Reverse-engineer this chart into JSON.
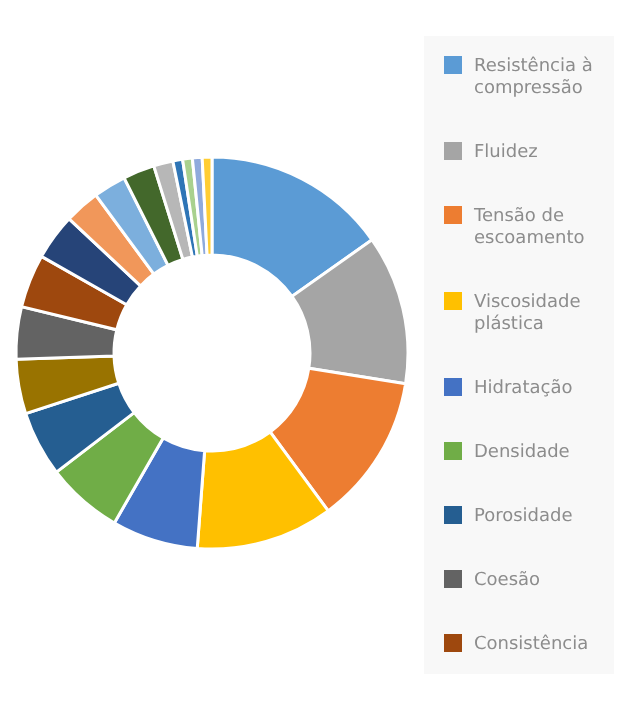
{
  "chart_data": {
    "type": "donut",
    "categories": [
      "Resistência à compressão",
      "Fluidez",
      "Tensão de escoamento",
      "Viscosidade plástica",
      "Hidratação",
      "Densidade",
      "Porosidade",
      null,
      "Coesão",
      "Consistência",
      null,
      null,
      null,
      null,
      null,
      null,
      null,
      null,
      null
    ],
    "values": [
      15.2,
      12.3,
      12.4,
      11.3,
      7.1,
      6.3,
      5.4,
      4.5,
      4.3,
      4.4,
      3.8,
      2.9,
      2.7,
      2.6,
      1.6,
      0.8,
      0.8,
      0.8,
      0.8
    ],
    "colors": [
      "#5b9bd5",
      "#a5a5a5",
      "#ed7d31",
      "#ffc000",
      "#4472c4",
      "#70ad47",
      "#255e91",
      "#997300",
      "#636363",
      "#9e480e",
      "#264478",
      "#f1975a",
      "#7cafdd",
      "#43682b",
      "#b7b7b7",
      "#2e75b6",
      "#a9d18e",
      "#8faadc",
      "#ffcd33"
    ],
    "legend": "right"
  }
}
